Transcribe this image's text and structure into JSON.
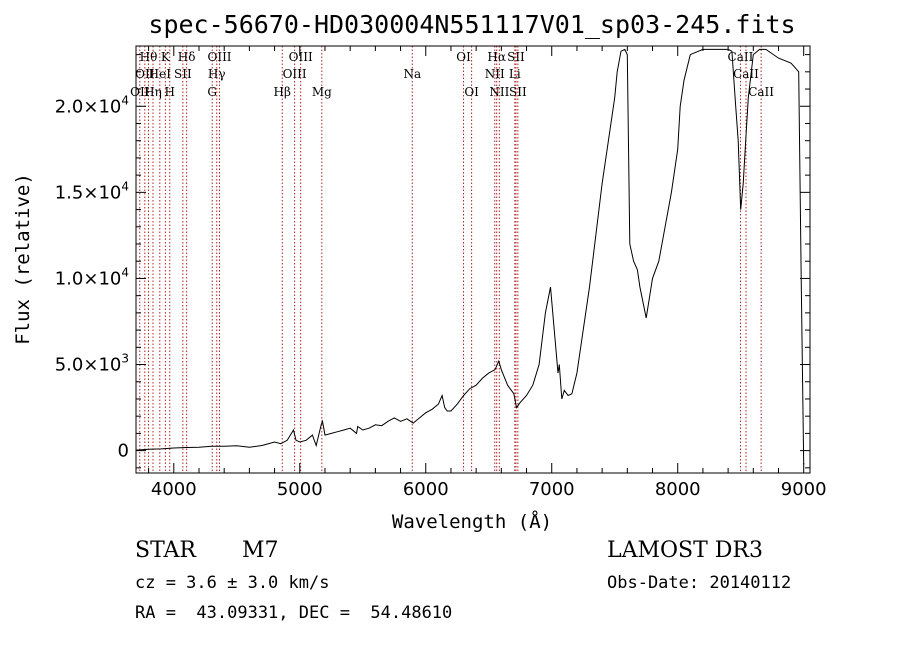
{
  "chart_data": {
    "type": "line",
    "title": "spec-56670-HD030004N551117V01_sp03-245.fits",
    "xlabel": "Wavelength (Å)",
    "ylabel": "Flux (relative)",
    "xlim": [
      3700,
      9050
    ],
    "ylim": [
      -1300,
      23500
    ],
    "xticks": [
      {
        "value": 4000,
        "label": "4000"
      },
      {
        "value": 5000,
        "label": "5000"
      },
      {
        "value": 6000,
        "label": "6000"
      },
      {
        "value": 7000,
        "label": "7000"
      },
      {
        "value": 8000,
        "label": "8000"
      },
      {
        "value": 9000,
        "label": "9000"
      }
    ],
    "yticks": [
      {
        "value": 0,
        "mant": "0",
        "exp": ""
      },
      {
        "value": 5000,
        "mant": "5.0×10",
        "exp": "3"
      },
      {
        "value": 10000,
        "mant": "1.0×10",
        "exp": "4"
      },
      {
        "value": 15000,
        "mant": "1.5×10",
        "exp": "4"
      },
      {
        "value": 20000,
        "mant": "2.0×10",
        "exp": "4"
      }
    ],
    "series": [
      {
        "name": "flux",
        "x": [
          3700,
          3800,
          3900,
          4000,
          4100,
          4200,
          4300,
          4400,
          4500,
          4600,
          4700,
          4800,
          4850,
          4900,
          4950,
          4970,
          5000,
          5050,
          5100,
          5130,
          5170,
          5180,
          5200,
          5250,
          5300,
          5350,
          5400,
          5450,
          5460,
          5500,
          5550,
          5600,
          5650,
          5700,
          5750,
          5800,
          5850,
          5900,
          5950,
          6000,
          6050,
          6100,
          6130,
          6150,
          6170,
          6200,
          6250,
          6300,
          6350,
          6400,
          6450,
          6500,
          6550,
          6580,
          6600,
          6650,
          6700,
          6720,
          6750,
          6800,
          6850,
          6900,
          6950,
          6990,
          7050,
          7060,
          7080,
          7100,
          7130,
          7160,
          7200,
          7250,
          7300,
          7350,
          7400,
          7450,
          7500,
          7520,
          7550,
          7580,
          7600,
          7620,
          7650,
          7680,
          7700,
          7750,
          7800,
          7850,
          7900,
          7950,
          8000,
          8020,
          8050,
          8100,
          8200,
          8300,
          8400,
          8430,
          8460,
          8480,
          8500,
          8520,
          8540,
          8560,
          8600,
          8650,
          8700,
          8800,
          8900,
          8960,
          8980,
          9000
        ],
        "y": [
          30,
          80,
          100,
          150,
          180,
          200,
          250,
          250,
          280,
          200,
          300,
          500,
          400,
          600,
          1200,
          600,
          500,
          600,
          900,
          300,
          1500,
          1700,
          900,
          1000,
          1100,
          1200,
          1300,
          1000,
          1400,
          1200,
          1300,
          1500,
          1450,
          1700,
          1900,
          1700,
          1850,
          1600,
          1900,
          2200,
          2400,
          2700,
          3200,
          2500,
          2300,
          2300,
          2700,
          3200,
          3600,
          3800,
          4200,
          4500,
          4700,
          5200,
          4700,
          3800,
          3300,
          2500,
          2800,
          3200,
          3800,
          5000,
          8000,
          9500,
          4500,
          5000,
          3000,
          3500,
          3200,
          3300,
          4500,
          7000,
          9500,
          12500,
          15500,
          18000,
          20500,
          22000,
          23200,
          23300,
          23000,
          12000,
          11000,
          10500,
          9500,
          7700,
          10000,
          11000,
          13000,
          15000,
          17500,
          20000,
          21500,
          23000,
          23300,
          23300,
          23300,
          23200,
          20000,
          18000,
          14000,
          15500,
          18000,
          20500,
          23000,
          23300,
          23300,
          22800,
          22500,
          22000,
          10000,
          -800
        ]
      }
    ],
    "line_markers": [
      {
        "wavelength": 3730,
        "label": "OII",
        "row": 2
      },
      {
        "wavelength": 3770,
        "label": "OII",
        "row": 1
      },
      {
        "wavelength": 3799,
        "label": "Hθ",
        "row": 0
      },
      {
        "wavelength": 3835,
        "label": "Hη",
        "row": 2
      },
      {
        "wavelength": 3889,
        "label": "HeI",
        "row": 1
      },
      {
        "wavelength": 3933,
        "label": "K",
        "row": 0
      },
      {
        "wavelength": 3968,
        "label": "H",
        "row": 2
      },
      {
        "wavelength": 4072,
        "label": "SII",
        "row": 1
      },
      {
        "wavelength": 4102,
        "label": "Hδ",
        "row": 0
      },
      {
        "wavelength": 4305,
        "label": "G",
        "row": 2
      },
      {
        "wavelength": 4341,
        "label": "Hγ",
        "row": 1
      },
      {
        "wavelength": 4363,
        "label": "OIII",
        "row": 0
      },
      {
        "wavelength": 4861,
        "label": "Hβ",
        "row": 2
      },
      {
        "wavelength": 4959,
        "label": "OIII",
        "row": 1
      },
      {
        "wavelength": 5007,
        "label": "OIII",
        "row": 0
      },
      {
        "wavelength": 5175,
        "label": "Mg",
        "row": 2
      },
      {
        "wavelength": 5893,
        "label": "Na",
        "row": 1
      },
      {
        "wavelength": 6300,
        "label": "OI",
        "row": 0
      },
      {
        "wavelength": 6364,
        "label": "OI",
        "row": 2
      },
      {
        "wavelength": 6548,
        "label": "NII",
        "row": 1
      },
      {
        "wavelength": 6563,
        "label": "Hα",
        "row": 0
      },
      {
        "wavelength": 6584,
        "label": "NII",
        "row": 2
      },
      {
        "wavelength": 6707,
        "label": "Li",
        "row": 1
      },
      {
        "wavelength": 6716,
        "label": "SII",
        "row": 0
      },
      {
        "wavelength": 6731,
        "label": "SII",
        "row": 2
      },
      {
        "wavelength": 8498,
        "label": "CaII",
        "row": 0
      },
      {
        "wavelength": 8542,
        "label": "CaII",
        "row": 1
      },
      {
        "wavelength": 8662,
        "label": "CaII",
        "row": 2
      }
    ]
  },
  "info": {
    "object_type": "STAR",
    "subclass": "M7",
    "cz": "cz = 3.6 ± 3.0 km/s",
    "coords": "RA =  43.09331, DEC =  54.48610",
    "survey": "LAMOST DR3",
    "obs_date": "Obs-Date: 20140112"
  },
  "colors": {
    "spectrum": "#000000",
    "marker": "#b22222",
    "axis": "#000000"
  }
}
